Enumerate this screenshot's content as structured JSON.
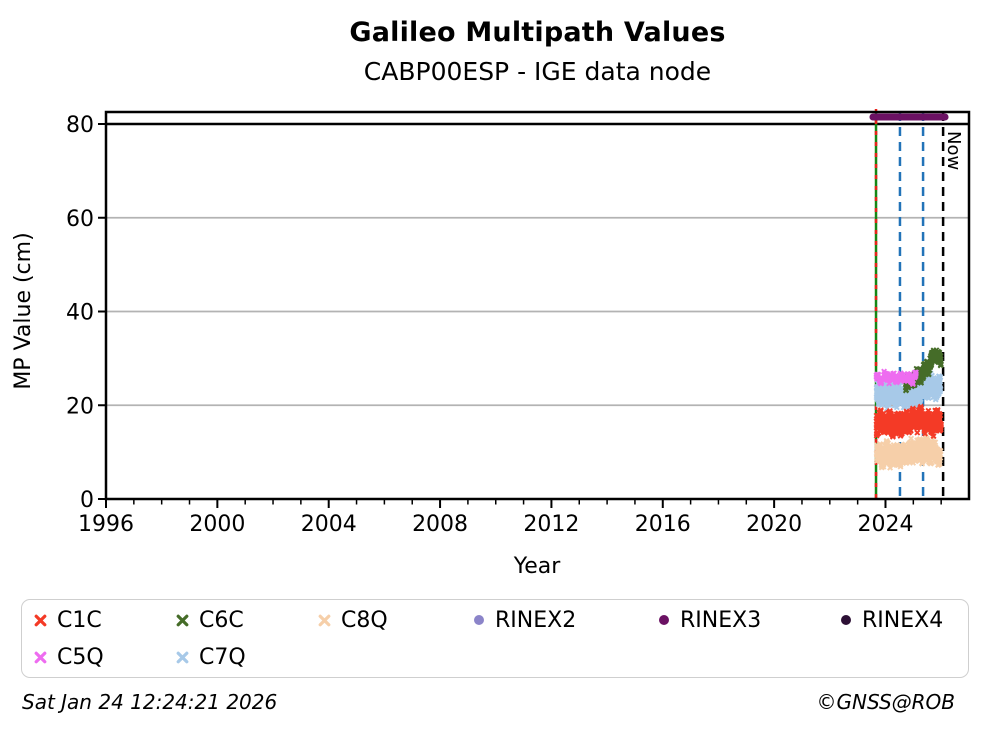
{
  "chart_data": {
    "type": "scatter",
    "title": "Galileo Multipath Values",
    "subtitle": "CABP00ESP - IGE data node",
    "xlabel": "Year",
    "ylabel": "MP Value (cm)",
    "xlim": [
      1996,
      2027
    ],
    "ylim": [
      0,
      82.56
    ],
    "xticks_major": [
      1996,
      2000,
      2004,
      2008,
      2012,
      2016,
      2020,
      2024
    ],
    "xtick_minor_step": 1,
    "yticks": [
      0,
      20,
      40,
      60,
      80
    ],
    "grid_y": [
      20,
      40,
      60
    ],
    "grid_color": "#b3b3b3",
    "hline_y": 80,
    "hline_color": "#000000",
    "now_line": {
      "x": 2026.07,
      "label": "Now",
      "color": "#000000",
      "style": "dashed"
    },
    "event_lines": [
      {
        "x": 2023.66,
        "color": "#168716",
        "style": "solid",
        "overlay_color": "#e8231a",
        "overlay_style": "dashed"
      },
      {
        "x": 2024.52,
        "color": "#2273b8",
        "style": "dashed"
      },
      {
        "x": 2025.35,
        "color": "#2273b8",
        "style": "dashed"
      }
    ],
    "rinex3_bar": {
      "name": "RINEX3",
      "y": 81.5,
      "x_start": 2023.55,
      "x_end": 2026.14,
      "color": "#6b1163"
    },
    "series": [
      {
        "name": "C7Q",
        "color": "#a7c9e8",
        "marker": "x",
        "x_start": 2023.67,
        "x_end": 2025.98,
        "trend": [
          [
            2023.67,
            22.5
          ],
          [
            2024.2,
            22.2
          ],
          [
            2024.8,
            21.8
          ],
          [
            2025.2,
            22.5
          ],
          [
            2025.55,
            24.2
          ],
          [
            2025.98,
            23.8
          ]
        ],
        "spread": 2.3,
        "n": 680,
        "seed": 44
      },
      {
        "name": "C6C",
        "color": "#456c28",
        "marker": "x",
        "x_start": 2024.72,
        "x_end": 2026.0,
        "trend": [
          [
            2024.72,
            24.5
          ],
          [
            2025.0,
            25.3
          ],
          [
            2025.35,
            26.8
          ],
          [
            2025.6,
            29.0
          ],
          [
            2025.85,
            31.3
          ],
          [
            2026.0,
            28.7
          ]
        ],
        "spread": 1.4,
        "n": 300,
        "seed": 33
      },
      {
        "name": "C5Q",
        "color": "#ee6cf0",
        "marker": "x",
        "x_start": 2023.67,
        "x_end": 2025.1,
        "trend": [
          [
            2023.67,
            25.8
          ],
          [
            2024.3,
            26.0
          ],
          [
            2024.9,
            25.6
          ],
          [
            2025.1,
            26.3
          ]
        ],
        "spread": 0.9,
        "n": 130,
        "seed": 22
      },
      {
        "name": "C8Q",
        "color": "#f6cfa9",
        "marker": "x",
        "x_start": 2023.67,
        "x_end": 2025.98,
        "trend": [
          [
            2023.67,
            9.6
          ],
          [
            2024.3,
            9.2
          ],
          [
            2024.9,
            9.9
          ],
          [
            2025.5,
            10.6
          ],
          [
            2025.98,
            9.4
          ]
        ],
        "spread": 2.3,
        "n": 680,
        "seed": 55
      },
      {
        "name": "C1C",
        "color": "#f43a26",
        "marker": "x",
        "x_start": 2023.67,
        "x_end": 2026.0,
        "trend": [
          [
            2023.67,
            16.4
          ],
          [
            2024.2,
            16.0
          ],
          [
            2024.8,
            16.2
          ],
          [
            2025.3,
            17.3
          ],
          [
            2025.6,
            16.2
          ],
          [
            2026.0,
            16.8
          ]
        ],
        "spread": 2.2,
        "n": 720,
        "seed": 11
      }
    ]
  },
  "legend": {
    "items": [
      {
        "label": "C1C",
        "color": "#f43a26",
        "marker": "x"
      },
      {
        "label": "C6C",
        "color": "#456c28",
        "marker": "x"
      },
      {
        "label": "C8Q",
        "color": "#f6cfa9",
        "marker": "x"
      },
      {
        "label": "RINEX2",
        "color": "#8b84c9",
        "marker": "dot"
      },
      {
        "label": "RINEX3",
        "color": "#6b1163",
        "marker": "dot"
      },
      {
        "label": "RINEX4",
        "color": "#2d1035",
        "marker": "dot"
      },
      {
        "label": "C5Q",
        "color": "#ee6cf0",
        "marker": "x"
      },
      {
        "label": "C7Q",
        "color": "#a7c9e8",
        "marker": "x"
      }
    ]
  },
  "footer": {
    "timestamp": "Sat Jan 24 12:24:21 2026",
    "credit": "©GNSS@ROB"
  }
}
